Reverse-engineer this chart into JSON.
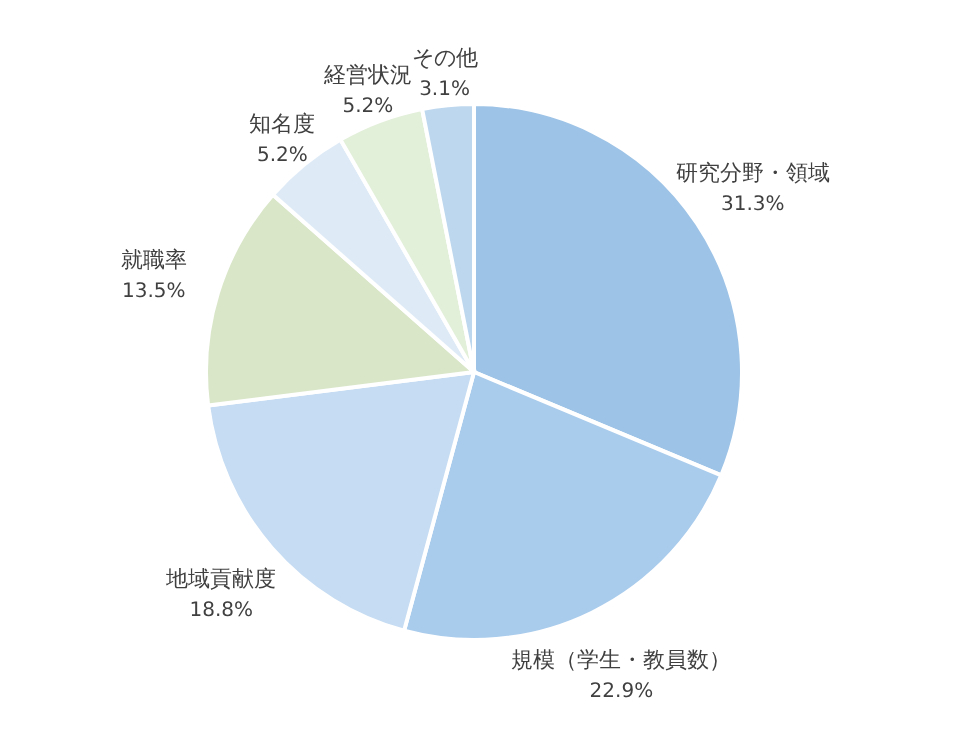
{
  "chart_data": {
    "type": "pie",
    "categories": [
      "研究分野・領域",
      "規模（学生・教員数）",
      "地域貢献度",
      "就職率",
      "知名度",
      "経営状況",
      "その他"
    ],
    "values": [
      31.3,
      22.9,
      18.8,
      13.5,
      5.2,
      5.2,
      3.1
    ],
    "colors": [
      "#9dc3e6",
      "#a9cbec",
      "#c5dcf2",
      "#d9e6c8",
      "#deebf7",
      "#e2efd9",
      "#bdd7ee"
    ],
    "value_labels": [
      "31.3%",
      "22.9%",
      "18.8%",
      "13.5%",
      "5.2%",
      "5.2%",
      "3.1%"
    ]
  }
}
